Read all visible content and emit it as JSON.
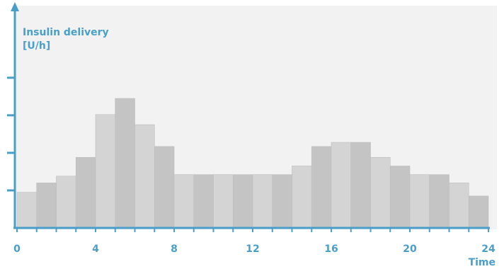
{
  "chart_data": {
    "type": "bar",
    "title": "",
    "ylabel_lines": [
      "Insulin delivery",
      "[U/h]"
    ],
    "xlabel": "Time",
    "x_range": [
      0,
      24
    ],
    "x_ticks": [
      "0",
      "4",
      "8",
      "12",
      "16",
      "20",
      "24"
    ],
    "bin_width": 1,
    "y_range": [
      0,
      4.6
    ],
    "y_ticks": [
      1,
      2,
      3,
      4
    ],
    "grid": false,
    "values": [
      0.95,
      1.2,
      1.38,
      1.88,
      3.02,
      3.45,
      2.75,
      2.17,
      1.42,
      1.42,
      1.42,
      1.42,
      1.42,
      1.42,
      1.65,
      2.17,
      2.28,
      2.28,
      1.88,
      1.65,
      1.42,
      1.42,
      1.2,
      0.85
    ],
    "colors": {
      "axis": "#4a9fc9",
      "bar_light": "#d4d4d4",
      "bar_dark": "#c4c4c4",
      "plot_bg": "#f2f2f2",
      "bar_edge": "#bdbdbd"
    }
  }
}
